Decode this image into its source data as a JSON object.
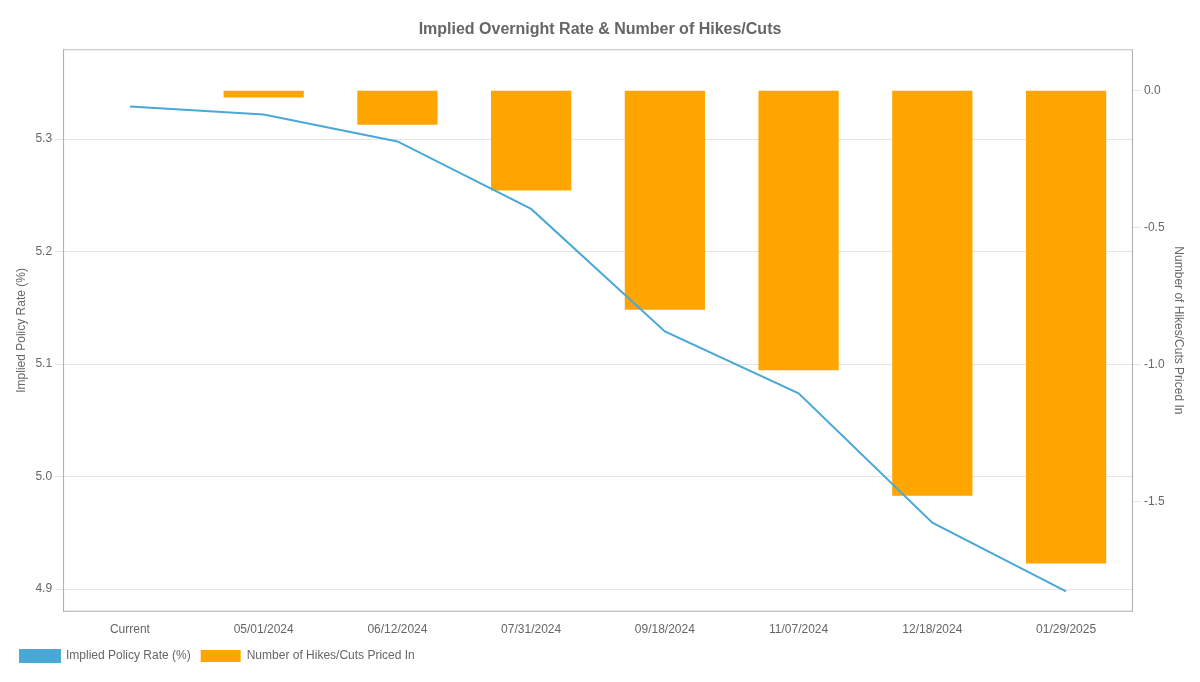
{
  "chart_data": {
    "type": "bar",
    "title": "Implied Overnight Rate & Number of Hikes/Cuts",
    "categories": [
      "Current",
      "05/01/2024",
      "06/12/2024",
      "07/31/2024",
      "09/18/2024",
      "11/07/2024",
      "12/18/2024",
      "01/29/2025"
    ],
    "series": [
      {
        "name": "Implied Policy Rate (%)",
        "type": "line",
        "color": "#4aa8d8",
        "axis": "y",
        "values": [
          5.329,
          5.322,
          5.298,
          5.238,
          5.129,
          5.074,
          4.959,
          4.898
        ]
      },
      {
        "name": "Number of Hikes/Cuts Priced In",
        "type": "bar",
        "color": "#FFA500",
        "axis": "y2",
        "values": [
          null,
          -0.026,
          -0.125,
          -0.365,
          -0.8,
          -1.02,
          -1.478,
          -1.725
        ]
      }
    ],
    "y_label": "Implied Policy Rate (%)",
    "y2_label": "Number of Hikes/Cuts Priced In",
    "ylim": [
      4.88,
      5.38
    ],
    "yticks": [
      4.9,
      {
        "value": 5,
        "label": "5.0"
      },
      5.1,
      5.2,
      5.3
    ],
    "y2lim": [
      -1.9,
      0.15
    ],
    "y2ticks": [
      {
        "value": 0,
        "label": "0.0"
      },
      -0.5,
      {
        "value": -1,
        "label": "-1.0"
      },
      -1.5
    ],
    "grid": true,
    "legend": "lower left"
  }
}
